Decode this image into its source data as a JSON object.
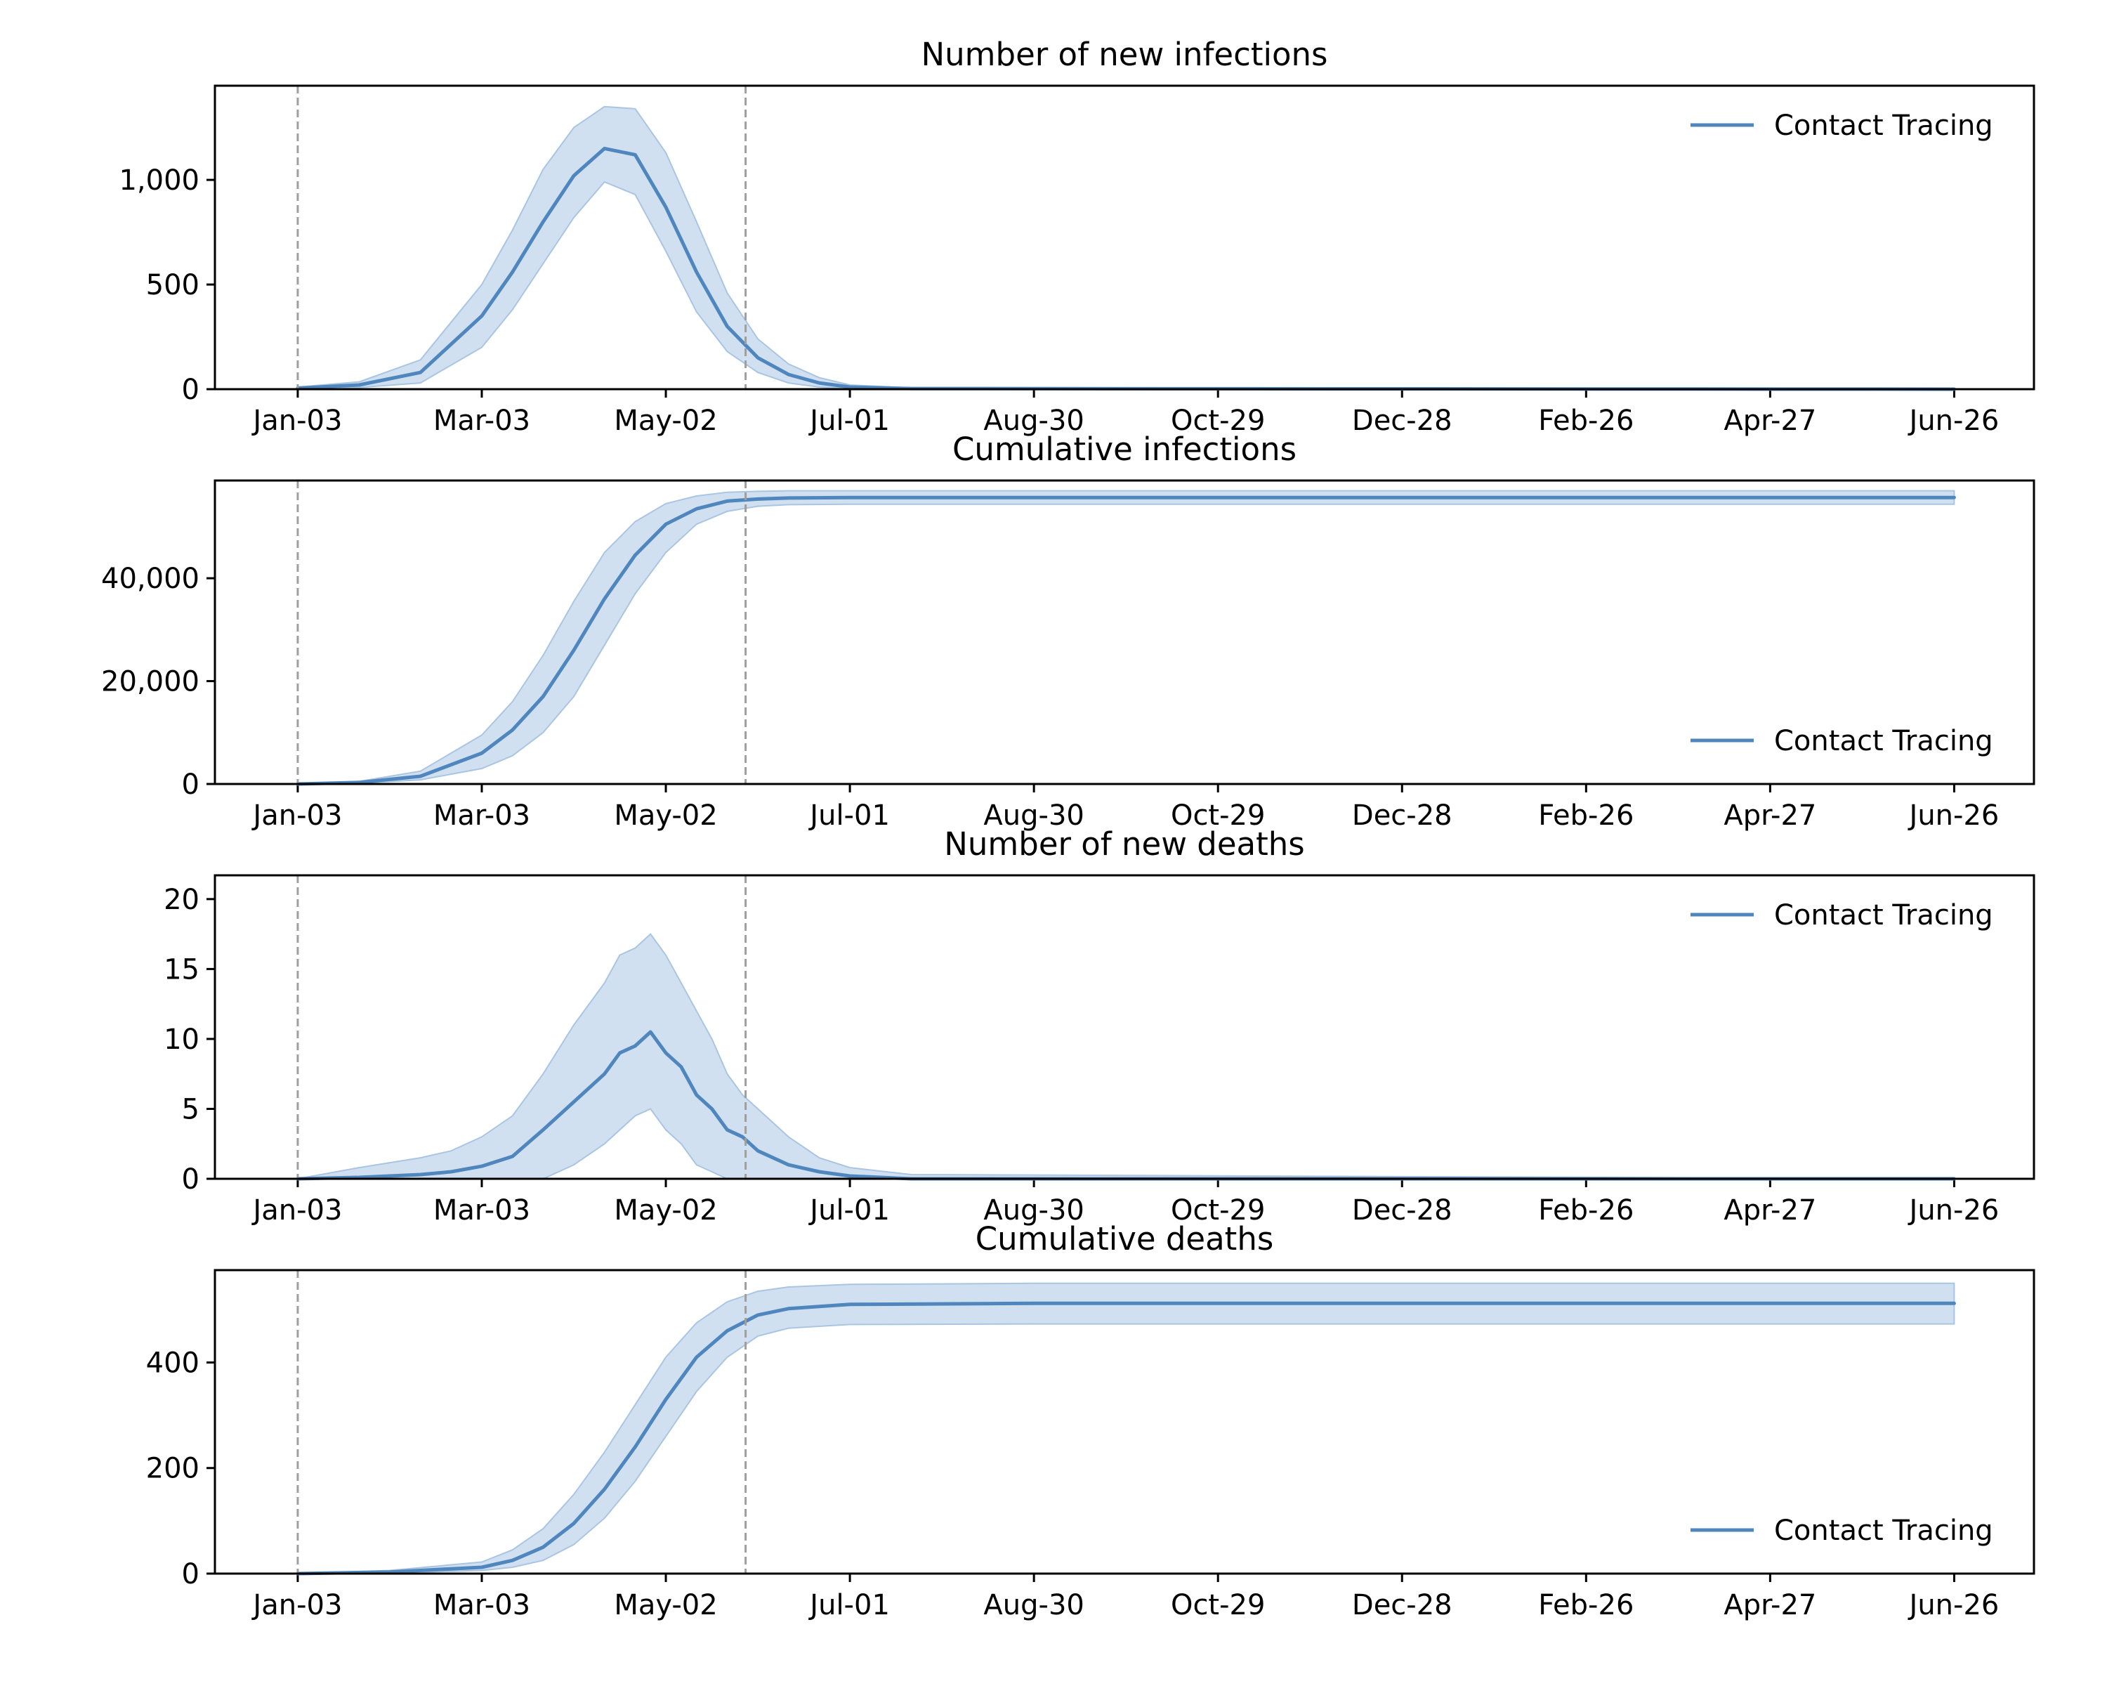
{
  "colors": {
    "series": "#4e86bd",
    "band_fill": "#c5d8ec",
    "band_edge": "#a9c5e2",
    "vline": "#9e9e9e"
  },
  "chart_data": [
    {
      "type": "line",
      "title": "Number of new infections",
      "x_ticks": [
        "Jan-03",
        "Mar-03",
        "May-02",
        "Jul-01",
        "Aug-30",
        "Oct-29",
        "Dec-28",
        "Feb-26",
        "Apr-27",
        "Jun-26"
      ],
      "x_tick_days": [
        0,
        60,
        120,
        180,
        240,
        300,
        360,
        420,
        480,
        540
      ],
      "xlim_days": [
        -27,
        566
      ],
      "ylim": [
        0,
        1450
      ],
      "y_ticks": [
        0,
        500,
        1000
      ],
      "y_tick_labels": [
        "0",
        "500",
        "1,000"
      ],
      "vlines_days": [
        0,
        146
      ],
      "grid": false,
      "legend": {
        "location": "upper right",
        "entries": [
          "Contact Tracing"
        ]
      },
      "series": [
        {
          "name": "Contact Tracing",
          "x_days": [
            0,
            20,
            40,
            60,
            70,
            80,
            90,
            100,
            110,
            120,
            130,
            140,
            150,
            160,
            170,
            180,
            200,
            540
          ],
          "mean": [
            5,
            20,
            80,
            350,
            560,
            800,
            1020,
            1150,
            1120,
            870,
            560,
            300,
            150,
            70,
            30,
            10,
            3,
            0
          ],
          "lower": [
            0,
            8,
            30,
            200,
            380,
            600,
            820,
            990,
            930,
            660,
            370,
            180,
            80,
            30,
            10,
            3,
            0,
            0
          ],
          "upper": [
            10,
            35,
            140,
            500,
            760,
            1050,
            1250,
            1350,
            1340,
            1130,
            800,
            460,
            240,
            120,
            55,
            20,
            6,
            0
          ]
        }
      ]
    },
    {
      "type": "line",
      "title": "Cumulative infections",
      "x_ticks": [
        "Jan-03",
        "Mar-03",
        "May-02",
        "Jul-01",
        "Aug-30",
        "Oct-29",
        "Dec-28",
        "Feb-26",
        "Apr-27",
        "Jun-26"
      ],
      "x_tick_days": [
        0,
        60,
        120,
        180,
        240,
        300,
        360,
        420,
        480,
        540
      ],
      "xlim_days": [
        -27,
        566
      ],
      "ylim": [
        0,
        59000
      ],
      "y_ticks": [
        0,
        20000,
        40000
      ],
      "y_tick_labels": [
        "0",
        "20,000",
        "40,000"
      ],
      "vlines_days": [
        0,
        146
      ],
      "grid": false,
      "legend": {
        "location": "lower right",
        "entries": [
          "Contact Tracing"
        ]
      },
      "series": [
        {
          "name": "Contact Tracing",
          "x_days": [
            0,
            20,
            40,
            60,
            70,
            80,
            90,
            100,
            110,
            120,
            130,
            140,
            150,
            160,
            180,
            200,
            540
          ],
          "mean": [
            0,
            300,
            1500,
            6000,
            10500,
            17000,
            26000,
            36000,
            44500,
            50500,
            53500,
            55000,
            55400,
            55600,
            55700,
            55700,
            55700
          ],
          "lower": [
            0,
            150,
            800,
            3000,
            5500,
            10000,
            17000,
            27000,
            37000,
            45000,
            50500,
            53000,
            54000,
            54300,
            54400,
            54400,
            54400
          ],
          "upper": [
            0,
            500,
            2500,
            9500,
            16000,
            25000,
            35500,
            45000,
            51000,
            54500,
            56000,
            56700,
            56900,
            57000,
            57000,
            57000,
            57000
          ]
        }
      ]
    },
    {
      "type": "line",
      "title": "Number of new deaths",
      "x_ticks": [
        "Jan-03",
        "Mar-03",
        "May-02",
        "Jul-01",
        "Aug-30",
        "Oct-29",
        "Dec-28",
        "Feb-26",
        "Apr-27",
        "Jun-26"
      ],
      "x_tick_days": [
        0,
        60,
        120,
        180,
        240,
        300,
        360,
        420,
        480,
        540
      ],
      "xlim_days": [
        -27,
        566
      ],
      "ylim": [
        0,
        21.7
      ],
      "y_ticks": [
        0,
        5,
        10,
        15,
        20
      ],
      "y_tick_labels": [
        "0",
        "5",
        "10",
        "15",
        "20"
      ],
      "vlines_days": [
        0,
        146
      ],
      "grid": false,
      "legend": {
        "location": "upper right",
        "entries": [
          "Contact Tracing"
        ]
      },
      "series": [
        {
          "name": "Contact Tracing",
          "x_days": [
            0,
            20,
            40,
            50,
            60,
            70,
            80,
            90,
            100,
            105,
            110,
            115,
            120,
            125,
            130,
            135,
            140,
            145,
            150,
            160,
            170,
            180,
            200,
            540
          ],
          "mean": [
            0,
            0.1,
            0.3,
            0.5,
            0.9,
            1.6,
            3.5,
            5.5,
            7.5,
            9,
            9.5,
            10.5,
            9,
            8,
            6,
            5,
            3.5,
            3,
            2,
            1,
            0.5,
            0.2,
            0,
            0
          ],
          "lower": [
            0,
            0,
            0,
            0,
            0,
            0,
            0,
            1,
            2.5,
            3.5,
            4.5,
            5,
            3.5,
            2.5,
            1,
            0.5,
            0,
            0,
            0,
            0,
            0,
            0,
            0,
            0
          ],
          "upper": [
            0,
            0.8,
            1.5,
            2,
            3,
            4.5,
            7.5,
            11,
            14,
            16,
            16.5,
            17.5,
            16,
            14,
            12,
            10,
            7.5,
            6,
            5,
            3,
            1.5,
            0.8,
            0.3,
            0
          ]
        }
      ]
    },
    {
      "type": "line",
      "title": "Cumulative deaths",
      "x_ticks": [
        "Jan-03",
        "Mar-03",
        "May-02",
        "Jul-01",
        "Aug-30",
        "Oct-29",
        "Dec-28",
        "Feb-26",
        "Apr-27",
        "Jun-26"
      ],
      "x_tick_days": [
        0,
        60,
        120,
        180,
        240,
        300,
        360,
        420,
        480,
        540
      ],
      "xlim_days": [
        -27,
        566
      ],
      "ylim": [
        0,
        575
      ],
      "y_ticks": [
        0,
        200,
        400
      ],
      "y_tick_labels": [
        "0",
        "200",
        "400"
      ],
      "vlines_days": [
        0,
        146
      ],
      "grid": false,
      "legend": {
        "location": "lower right",
        "entries": [
          "Contact Tracing"
        ]
      },
      "series": [
        {
          "name": "Contact Tracing",
          "x_days": [
            0,
            30,
            60,
            70,
            80,
            90,
            100,
            110,
            120,
            130,
            140,
            150,
            160,
            180,
            240,
            540
          ],
          "mean": [
            0,
            3,
            12,
            25,
            50,
            95,
            160,
            240,
            330,
            410,
            460,
            490,
            502,
            510,
            512,
            512
          ],
          "lower": [
            0,
            1,
            6,
            12,
            25,
            55,
            105,
            175,
            260,
            345,
            410,
            450,
            465,
            472,
            473,
            473
          ],
          "upper": [
            0,
            6,
            22,
            45,
            85,
            150,
            230,
            320,
            410,
            475,
            515,
            535,
            543,
            548,
            550,
            550
          ]
        }
      ]
    }
  ]
}
